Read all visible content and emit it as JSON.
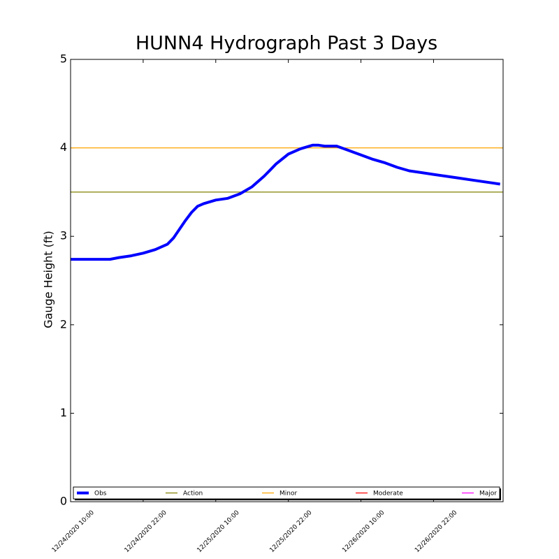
{
  "chart_data": {
    "type": "line",
    "title": "HUNN4 Hydrograph Past 3 Days",
    "y_label": "Gauge Height (ft)",
    "x": [
      "2020-12-24T10:00",
      "2020-12-24T16:30",
      "2020-12-24T18:00",
      "2020-12-24T20:00",
      "2020-12-24T22:00",
      "2020-12-25T00:00",
      "2020-12-25T02:00",
      "2020-12-25T03:00",
      "2020-12-25T04:00",
      "2020-12-25T05:00",
      "2020-12-25T06:00",
      "2020-12-25T07:00",
      "2020-12-25T08:00",
      "2020-12-25T10:00",
      "2020-12-25T12:00",
      "2020-12-25T14:00",
      "2020-12-25T16:00",
      "2020-12-25T18:00",
      "2020-12-25T19:00",
      "2020-12-25T20:00",
      "2020-12-25T22:00",
      "2020-12-26T00:00",
      "2020-12-26T02:00",
      "2020-12-26T03:00",
      "2020-12-26T04:00",
      "2020-12-26T06:00",
      "2020-12-26T08:00",
      "2020-12-26T10:00",
      "2020-12-26T12:00",
      "2020-12-26T14:00",
      "2020-12-26T16:00",
      "2020-12-26T18:00",
      "2020-12-26T20:00",
      "2020-12-26T22:00",
      "2020-12-27T00:00",
      "2020-12-27T02:00",
      "2020-12-27T04:00",
      "2020-12-27T06:00",
      "2020-12-27T08:00",
      "2020-12-27T09:00"
    ],
    "series": [
      {
        "name": "Obs",
        "color": "#0000ff",
        "values": [
          2.74,
          2.74,
          2.76,
          2.78,
          2.81,
          2.85,
          2.91,
          2.98,
          3.08,
          3.18,
          3.27,
          3.34,
          3.37,
          3.41,
          3.43,
          3.48,
          3.56,
          3.68,
          3.75,
          3.82,
          3.93,
          3.99,
          4.03,
          4.03,
          4.02,
          4.02,
          3.97,
          3.92,
          3.87,
          3.83,
          3.78,
          3.74,
          3.72,
          3.7,
          3.68,
          3.66,
          3.64,
          3.62,
          3.6,
          3.59
        ]
      }
    ],
    "thresholds": [
      {
        "name": "Action",
        "color": "#808000",
        "value": 3.5
      },
      {
        "name": "Minor",
        "color": "#ffa500",
        "value": 4
      },
      {
        "name": "Moderate",
        "color": "#ff0000"
      },
      {
        "name": "Major",
        "color": "#ff00ff"
      }
    ],
    "xlim": [
      "2020-12-24T10:00",
      "2020-12-27T09:30"
    ],
    "xticks": [
      {
        "value": "2020-12-24T10:00",
        "label": "12/24/2020 10:00"
      },
      {
        "value": "2020-12-24T22:00",
        "label": "12/24/2020 22:00"
      },
      {
        "value": "2020-12-25T10:00",
        "label": "12/25/2020 10:00"
      },
      {
        "value": "2020-12-25T22:00",
        "label": "12/25/2020 22:00"
      },
      {
        "value": "2020-12-26T10:00",
        "label": "12/26/2020 10:00"
      },
      {
        "value": "2020-12-26T22:00",
        "label": "12/26/2020 22:00"
      }
    ],
    "ylim": [
      0,
      5
    ],
    "yticks": [
      0,
      1,
      2,
      3,
      4,
      5
    ],
    "legend": "lower center"
  }
}
